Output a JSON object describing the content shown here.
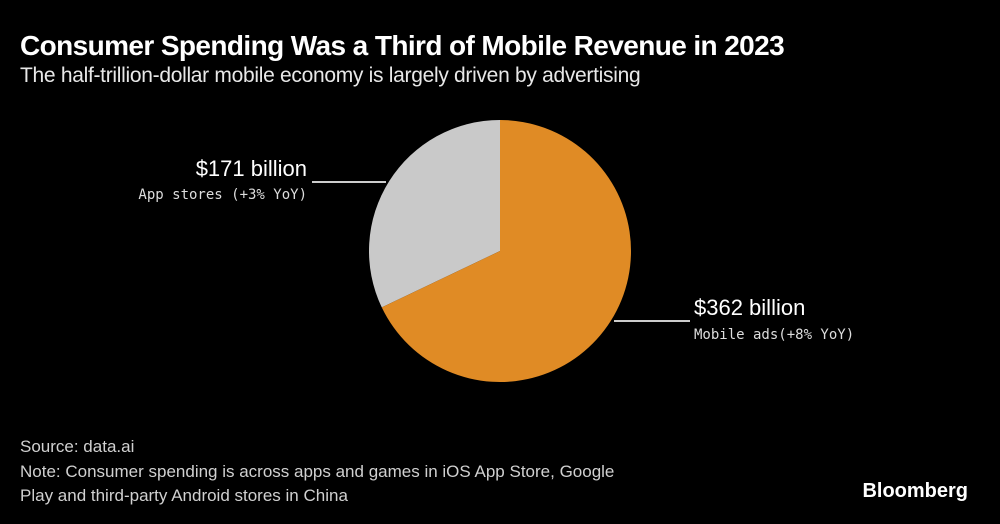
{
  "title": "Consumer Spending Was a Third of Mobile Revenue in 2023",
  "subtitle": "The half-trillion-dollar mobile economy is largely driven by advertising",
  "chart_data": {
    "type": "pie",
    "title": "Consumer Spending Was a Third of Mobile Revenue in 2023",
    "subtitle": "The half-trillion-dollar mobile economy is largely driven by advertising",
    "slices": [
      {
        "label": "Mobile ads(+8% YoY)",
        "value": 362,
        "value_label": "$362 billion",
        "color": "#E08B25"
      },
      {
        "label": "App stores (+3% YoY)",
        "value": 171,
        "value_label": "$171 billion",
        "color": "#C9C9C9"
      }
    ],
    "start_angle": "12 o'clock",
    "direction": "clockwise"
  },
  "footer": {
    "source": "Source: data.ai",
    "note_line1": "Note: Consumer spending is across apps and games in iOS App Store, Google",
    "note_line2": "Play and third-party Android stores in China"
  },
  "logo": "Bloomberg"
}
